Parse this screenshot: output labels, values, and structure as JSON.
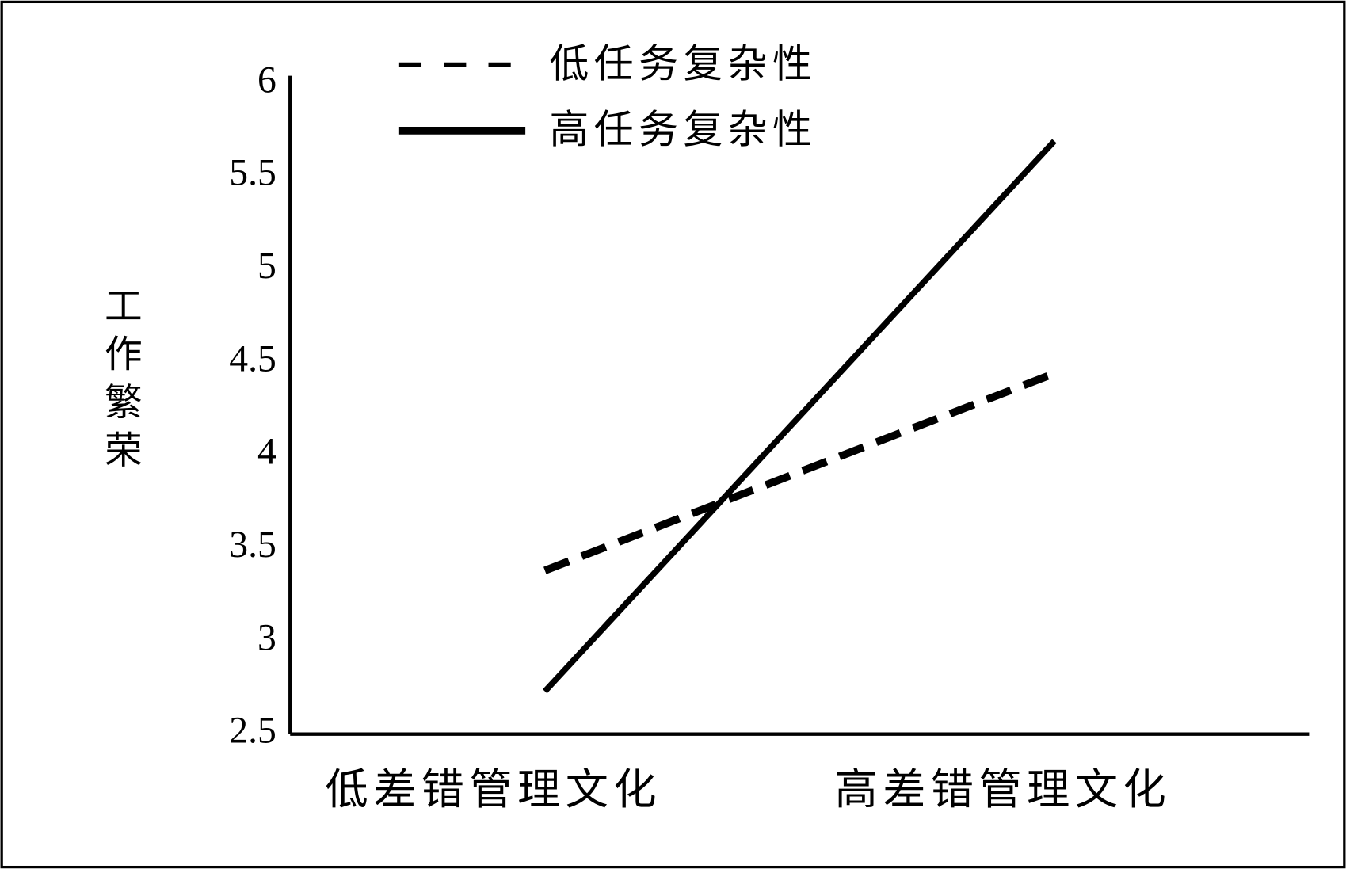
{
  "chart_data": {
    "type": "line",
    "y_label": "工作繁荣",
    "categories": [
      "低差错管理文化",
      "高差错管理文化"
    ],
    "series": [
      {
        "name": "低任务复杂性",
        "color": "#000000",
        "dash": true,
        "values": [
          3.38,
          4.44
        ]
      },
      {
        "name": "高任务复杂性",
        "color": "#000000",
        "dash": false,
        "values": [
          2.73,
          5.69
        ]
      }
    ],
    "ylim": [
      2.5,
      6
    ],
    "yticks": [
      2.5,
      3,
      3.5,
      4,
      4.5,
      5,
      5.5,
      6
    ],
    "legend": "top-left"
  }
}
